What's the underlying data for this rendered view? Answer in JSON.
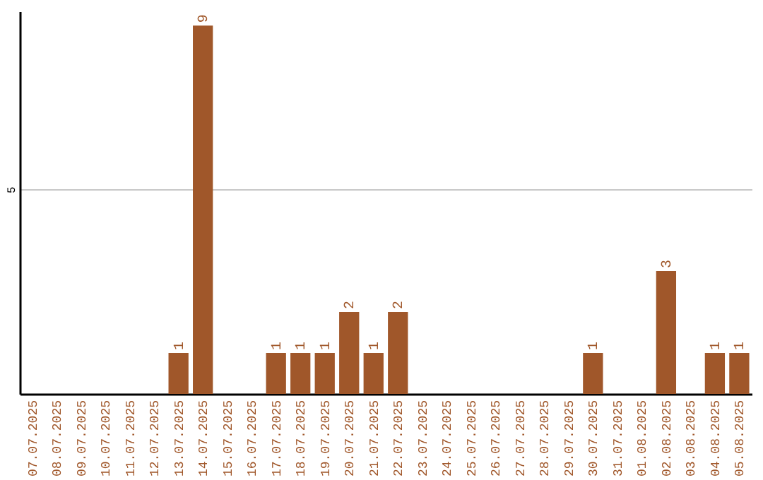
{
  "chart_data": {
    "type": "bar",
    "categories": [
      "07.07.2025",
      "08.07.2025",
      "09.07.2025",
      "10.07.2025",
      "11.07.2025",
      "12.07.2025",
      "13.07.2025",
      "14.07.2025",
      "15.07.2025",
      "16.07.2025",
      "17.07.2025",
      "18.07.2025",
      "19.07.2025",
      "20.07.2025",
      "21.07.2025",
      "22.07.2025",
      "23.07.2025",
      "24.07.2025",
      "25.07.2025",
      "26.07.2025",
      "27.07.2025",
      "28.07.2025",
      "29.07.2025",
      "30.07.2025",
      "31.07.2025",
      "01.08.2025",
      "02.08.2025",
      "03.08.2025",
      "04.08.2025",
      "05.08.2025"
    ],
    "values": [
      0,
      0,
      0,
      0,
      0,
      0,
      1,
      9,
      0,
      0,
      1,
      1,
      1,
      2,
      1,
      2,
      0,
      0,
      0,
      0,
      0,
      0,
      0,
      1,
      0,
      0,
      3,
      0,
      1,
      1
    ],
    "value_labels": [
      null,
      null,
      null,
      null,
      null,
      null,
      "1",
      "9",
      null,
      null,
      "1",
      "1",
      "1",
      "2",
      "1",
      "2",
      null,
      null,
      null,
      null,
      null,
      null,
      null,
      "1",
      null,
      null,
      "3",
      null,
      "1",
      "1"
    ],
    "color": "#a0572a",
    "ylim": [
      0,
      9.35
    ],
    "yticks": [
      5
    ],
    "grid": "y"
  }
}
